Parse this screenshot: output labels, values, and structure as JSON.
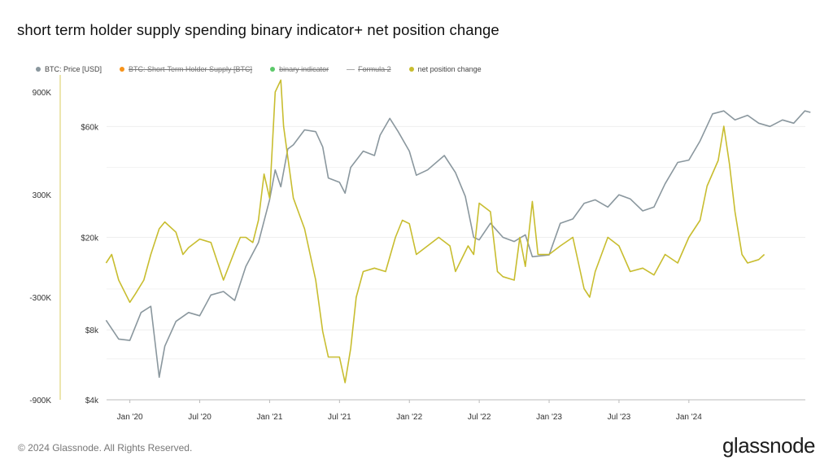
{
  "chart_data": {
    "type": "line",
    "title": "short term holder supply spending binary indicator+ net position change",
    "x_ticks": [
      "Jan '20",
      "Jul '20",
      "Jan '21",
      "Jul '21",
      "Jan '22",
      "Jul '22",
      "Jan '23",
      "Jul '23",
      "Jan '24"
    ],
    "x_range": [
      "2019-11",
      "2024-11"
    ],
    "y_left": {
      "ticks": [
        "900K",
        "300K",
        "-300K",
        "-900K"
      ],
      "range": [
        -900000,
        1000000
      ]
    },
    "y_right": {
      "ticks": [
        "$60k",
        "$20k",
        "$8k",
        "$4k"
      ],
      "scale": "log",
      "range": [
        4000,
        100000
      ]
    },
    "legend": [
      {
        "name": "BTC: Price [USD]",
        "color": "#8a979e",
        "enabled": true,
        "marker": "dot"
      },
      {
        "name": "BTC: Short-Term Holder Supply [BTC]",
        "color": "#f7931a",
        "enabled": false,
        "marker": "dot"
      },
      {
        "name": "binary indicator",
        "color": "#5cc96a",
        "enabled": false,
        "marker": "dot"
      },
      {
        "name": "Formula 2",
        "color": "#aaaaaa",
        "enabled": false,
        "marker": "line"
      },
      {
        "name": "net position change",
        "color": "#c8bd2f",
        "enabled": true,
        "marker": "dot"
      }
    ],
    "series": [
      {
        "name": "BTC: Price [USD]",
        "axis": "right",
        "color": "#8a979e",
        "points": [
          [
            2019.83,
            8800
          ],
          [
            2019.92,
            7300
          ],
          [
            2020.0,
            7200
          ],
          [
            2020.08,
            9500
          ],
          [
            2020.15,
            10100
          ],
          [
            2020.21,
            5000
          ],
          [
            2020.25,
            6800
          ],
          [
            2020.33,
            8700
          ],
          [
            2020.42,
            9500
          ],
          [
            2020.5,
            9200
          ],
          [
            2020.58,
            11300
          ],
          [
            2020.67,
            11700
          ],
          [
            2020.75,
            10700
          ],
          [
            2020.83,
            15000
          ],
          [
            2020.92,
            19000
          ],
          [
            2021.0,
            29000
          ],
          [
            2021.04,
            39000
          ],
          [
            2021.08,
            33000
          ],
          [
            2021.13,
            48000
          ],
          [
            2021.17,
            50000
          ],
          [
            2021.25,
            58000
          ],
          [
            2021.33,
            57000
          ],
          [
            2021.38,
            49000
          ],
          [
            2021.42,
            36000
          ],
          [
            2021.5,
            34500
          ],
          [
            2021.54,
            31000
          ],
          [
            2021.58,
            40000
          ],
          [
            2021.67,
            47000
          ],
          [
            2021.75,
            45000
          ],
          [
            2021.79,
            55000
          ],
          [
            2021.86,
            65000
          ],
          [
            2021.92,
            57000
          ],
          [
            2022.0,
            47000
          ],
          [
            2022.05,
            37000
          ],
          [
            2022.13,
            39000
          ],
          [
            2022.25,
            45000
          ],
          [
            2022.33,
            38000
          ],
          [
            2022.4,
            30000
          ],
          [
            2022.46,
            20000
          ],
          [
            2022.5,
            19500
          ],
          [
            2022.58,
            23000
          ],
          [
            2022.67,
            20000
          ],
          [
            2022.75,
            19200
          ],
          [
            2022.83,
            20500
          ],
          [
            2022.88,
            16500
          ],
          [
            2023.0,
            16800
          ],
          [
            2023.08,
            23000
          ],
          [
            2023.17,
            24000
          ],
          [
            2023.25,
            28000
          ],
          [
            2023.33,
            29000
          ],
          [
            2023.42,
            27000
          ],
          [
            2023.5,
            30500
          ],
          [
            2023.58,
            29300
          ],
          [
            2023.67,
            26000
          ],
          [
            2023.75,
            27000
          ],
          [
            2023.83,
            34000
          ],
          [
            2023.92,
            42000
          ],
          [
            2024.0,
            43000
          ],
          [
            2024.08,
            52000
          ],
          [
            2024.17,
            68000
          ],
          [
            2024.25,
            70000
          ],
          [
            2024.33,
            64000
          ],
          [
            2024.42,
            67000
          ],
          [
            2024.5,
            62000
          ],
          [
            2024.58,
            60000
          ],
          [
            2024.67,
            64000
          ],
          [
            2024.75,
            62000
          ],
          [
            2024.83,
            70000
          ],
          [
            2024.87,
            69000
          ]
        ]
      },
      {
        "name": "net position change",
        "axis": "left",
        "color": "#c8bd2f",
        "points": [
          [
            2019.83,
            -100000
          ],
          [
            2019.87,
            -50000
          ],
          [
            2019.92,
            -200000
          ],
          [
            2020.0,
            -330000
          ],
          [
            2020.04,
            -280000
          ],
          [
            2020.1,
            -200000
          ],
          [
            2020.15,
            -50000
          ],
          [
            2020.21,
            100000
          ],
          [
            2020.25,
            140000
          ],
          [
            2020.33,
            80000
          ],
          [
            2020.38,
            -50000
          ],
          [
            2020.42,
            -10000
          ],
          [
            2020.5,
            40000
          ],
          [
            2020.58,
            20000
          ],
          [
            2020.67,
            -200000
          ],
          [
            2020.75,
            -30000
          ],
          [
            2020.79,
            50000
          ],
          [
            2020.83,
            50000
          ],
          [
            2020.88,
            20000
          ],
          [
            2020.92,
            150000
          ],
          [
            2020.96,
            420000
          ],
          [
            2021.0,
            280000
          ],
          [
            2021.04,
            900000
          ],
          [
            2021.08,
            970000
          ],
          [
            2021.1,
            700000
          ],
          [
            2021.17,
            280000
          ],
          [
            2021.25,
            100000
          ],
          [
            2021.33,
            -200000
          ],
          [
            2021.38,
            -500000
          ],
          [
            2021.42,
            -650000
          ],
          [
            2021.5,
            -650000
          ],
          [
            2021.54,
            -800000
          ],
          [
            2021.58,
            -600000
          ],
          [
            2021.62,
            -300000
          ],
          [
            2021.67,
            -150000
          ],
          [
            2021.75,
            -130000
          ],
          [
            2021.83,
            -150000
          ],
          [
            2021.9,
            50000
          ],
          [
            2021.95,
            150000
          ],
          [
            2022.0,
            130000
          ],
          [
            2022.05,
            -50000
          ],
          [
            2022.13,
            0
          ],
          [
            2022.21,
            50000
          ],
          [
            2022.29,
            0
          ],
          [
            2022.33,
            -150000
          ],
          [
            2022.42,
            0
          ],
          [
            2022.46,
            -50000
          ],
          [
            2022.5,
            250000
          ],
          [
            2022.58,
            200000
          ],
          [
            2022.63,
            -150000
          ],
          [
            2022.67,
            -180000
          ],
          [
            2022.75,
            -200000
          ],
          [
            2022.79,
            50000
          ],
          [
            2022.83,
            -120000
          ],
          [
            2022.88,
            260000
          ],
          [
            2022.92,
            -50000
          ],
          [
            2023.0,
            -50000
          ],
          [
            2023.08,
            0
          ],
          [
            2023.17,
            50000
          ],
          [
            2023.25,
            -250000
          ],
          [
            2023.29,
            -300000
          ],
          [
            2023.33,
            -150000
          ],
          [
            2023.42,
            50000
          ],
          [
            2023.5,
            0
          ],
          [
            2023.58,
            -150000
          ],
          [
            2023.67,
            -130000
          ],
          [
            2023.75,
            -170000
          ],
          [
            2023.83,
            -50000
          ],
          [
            2023.92,
            -100000
          ],
          [
            2024.0,
            50000
          ],
          [
            2024.08,
            150000
          ],
          [
            2024.13,
            350000
          ],
          [
            2024.21,
            500000
          ],
          [
            2024.25,
            700000
          ],
          [
            2024.29,
            480000
          ],
          [
            2024.33,
            200000
          ],
          [
            2024.38,
            -50000
          ],
          [
            2024.42,
            -100000
          ],
          [
            2024.5,
            -80000
          ],
          [
            2024.54,
            -50000
          ]
        ]
      }
    ]
  },
  "footer": {
    "copyright": "© 2024 Glassnode. All Rights Reserved.",
    "brand": "glassnode"
  }
}
